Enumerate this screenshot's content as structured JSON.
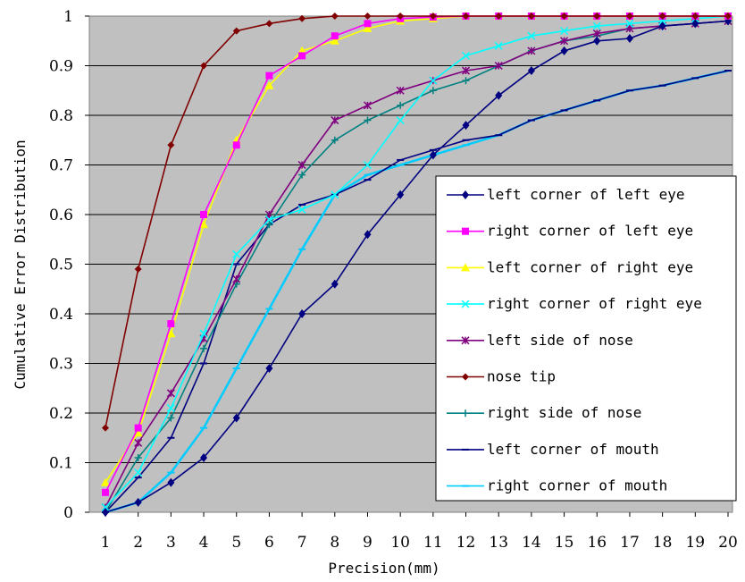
{
  "chart_data": {
    "type": "line",
    "title": "",
    "xlabel": "Precision(mm)",
    "ylabel": "Cumulative Error Distribution",
    "x": [
      1,
      2,
      3,
      4,
      5,
      6,
      7,
      8,
      9,
      10,
      11,
      12,
      13,
      14,
      15,
      16,
      17,
      18,
      19,
      20
    ],
    "xlim": [
      1,
      20
    ],
    "ylim": [
      0,
      1
    ],
    "yticks": [
      "0",
      "0.1",
      "0.2",
      "0.3",
      "0.4",
      "0.5",
      "0.6",
      "0.7",
      "0.8",
      "0.9",
      "1"
    ],
    "xticks": [
      "1",
      "2",
      "3",
      "4",
      "5",
      "6",
      "7",
      "8",
      "9",
      "10",
      "11",
      "12",
      "13",
      "14",
      "15",
      "16",
      "17",
      "18",
      "19",
      "20"
    ],
    "grid": "horizontal",
    "plot_background": "#c0c0c0",
    "legend_position": "right",
    "series": [
      {
        "name": "left corner of left eye",
        "color": "#000080",
        "marker": "diamond",
        "values": [
          0.0,
          0.02,
          0.06,
          0.11,
          0.19,
          0.29,
          0.4,
          0.46,
          0.56,
          0.64,
          0.72,
          0.78,
          0.84,
          0.89,
          0.93,
          0.95,
          0.955,
          0.98,
          0.985,
          0.99
        ]
      },
      {
        "name": "right corner of left eye",
        "color": "#ff00ff",
        "marker": "square",
        "values": [
          0.04,
          0.17,
          0.38,
          0.6,
          0.74,
          0.88,
          0.92,
          0.96,
          0.985,
          0.995,
          0.998,
          1.0,
          1.0,
          1.0,
          1.0,
          1.0,
          1.0,
          1.0,
          1.0,
          1.0
        ]
      },
      {
        "name": "left corner of right eye",
        "color": "#ffff00",
        "marker": "triangle",
        "values": [
          0.06,
          0.16,
          0.36,
          0.58,
          0.75,
          0.86,
          0.93,
          0.95,
          0.975,
          0.99,
          0.995,
          1.0,
          1.0,
          1.0,
          1.0,
          1.0,
          1.0,
          1.0,
          1.0,
          1.0
        ]
      },
      {
        "name": "right corner of right eye",
        "color": "#00ffff",
        "marker": "x",
        "values": [
          0.01,
          0.08,
          0.21,
          0.36,
          0.52,
          0.59,
          0.61,
          0.64,
          0.7,
          0.79,
          0.87,
          0.92,
          0.94,
          0.96,
          0.97,
          0.98,
          0.985,
          0.99,
          0.995,
          1.0
        ]
      },
      {
        "name": "left side of nose",
        "color": "#800080",
        "marker": "star",
        "values": [
          0.01,
          0.14,
          0.24,
          0.35,
          0.47,
          0.6,
          0.7,
          0.79,
          0.82,
          0.85,
          0.87,
          0.89,
          0.9,
          0.93,
          0.95,
          0.965,
          0.975,
          0.98,
          0.985,
          0.99
        ]
      },
      {
        "name": "nose tip",
        "color": "#800000",
        "marker": "circle",
        "values": [
          0.17,
          0.49,
          0.74,
          0.9,
          0.97,
          0.985,
          0.995,
          1.0,
          1.0,
          1.0,
          1.0,
          1.0,
          1.0,
          1.0,
          1.0,
          1.0,
          1.0,
          1.0,
          1.0,
          1.0
        ]
      },
      {
        "name": "right side of nose",
        "color": "#008080",
        "marker": "plus",
        "values": [
          0.0,
          0.11,
          0.19,
          0.33,
          0.46,
          0.58,
          0.68,
          0.75,
          0.79,
          0.82,
          0.85,
          0.87,
          0.9,
          0.93,
          0.95,
          0.96,
          0.975,
          0.98,
          0.985,
          0.99
        ]
      },
      {
        "name": "left corner of mouth",
        "color": "#000080",
        "marker": "dash",
        "values": [
          0.0,
          0.07,
          0.15,
          0.3,
          0.5,
          0.58,
          0.62,
          0.64,
          0.67,
          0.71,
          0.73,
          0.75,
          0.76,
          0.79,
          0.81,
          0.83,
          0.85,
          0.86,
          0.875,
          0.89
        ]
      },
      {
        "name": "right corner of mouth",
        "color": "#00ccff",
        "marker": "dash",
        "values": [
          0.0,
          0.02,
          0.08,
          0.17,
          0.29,
          0.41,
          0.53,
          0.64,
          0.68,
          0.7,
          0.72,
          0.74,
          0.76,
          0.79,
          0.81,
          0.83,
          0.85,
          0.86,
          0.875,
          0.89
        ]
      }
    ]
  }
}
